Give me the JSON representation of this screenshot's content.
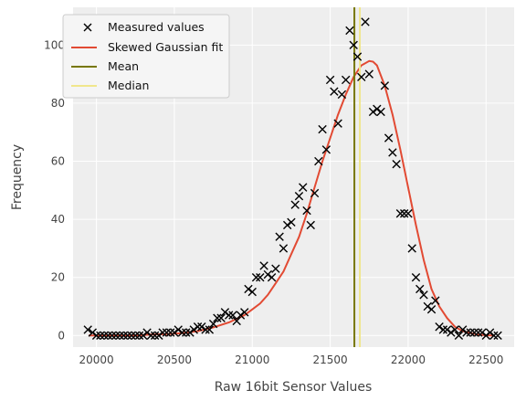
{
  "chart_data": {
    "type": "scatter",
    "xlabel": "Raw 16bit Sensor Values",
    "ylabel": "Frequency",
    "xlim": [
      19850,
      22680
    ],
    "ylim": [
      -4,
      113
    ],
    "xticks": [
      20000,
      20500,
      21000,
      21500,
      22000,
      22500
    ],
    "yticks": [
      0,
      20,
      40,
      60,
      80,
      100
    ],
    "grid": true,
    "legend_position": "top-left",
    "legend": {
      "measured": "Measured values",
      "fit": "Skewed Gaussian fit",
      "mean": "Mean",
      "median": "Median"
    },
    "colors": {
      "measured": "#000000",
      "fit": "#e24a33",
      "mean": "#777700",
      "median": "#f0e68c",
      "background": "#eeeeee",
      "grid": "#ffffff"
    },
    "mean_value": 21655,
    "median_value": 21690,
    "measured": {
      "x": [
        19945,
        19975,
        20000,
        20025,
        20050,
        20075,
        20100,
        20125,
        20150,
        20175,
        20200,
        20225,
        20250,
        20275,
        20300,
        20325,
        20350,
        20375,
        20400,
        20425,
        20450,
        20475,
        20500,
        20525,
        20550,
        20575,
        20600,
        20625,
        20650,
        20675,
        20700,
        20725,
        20750,
        20775,
        20800,
        20825,
        20850,
        20875,
        20900,
        20925,
        20950,
        20975,
        21000,
        21025,
        21050,
        21075,
        21100,
        21125,
        21150,
        21175,
        21200,
        21225,
        21250,
        21275,
        21300,
        21325,
        21350,
        21375,
        21400,
        21425,
        21450,
        21475,
        21500,
        21525,
        21550,
        21575,
        21600,
        21625,
        21650,
        21675,
        21700,
        21725,
        21750,
        21775,
        21800,
        21825,
        21850,
        21875,
        21900,
        21925,
        21950,
        21975,
        22000,
        22025,
        22050,
        22075,
        22100,
        22125,
        22150,
        22175,
        22200,
        22225,
        22250,
        22275,
        22300,
        22325,
        22350,
        22375,
        22400,
        22425,
        22450,
        22475,
        22500,
        22525,
        22550,
        22575
      ],
      "y": [
        2,
        1,
        0,
        0,
        0,
        0,
        0,
        0,
        0,
        0,
        0,
        0,
        0,
        0,
        0,
        1,
        0,
        0,
        0,
        1,
        1,
        1,
        1,
        2,
        1,
        1,
        1,
        2,
        3,
        3,
        2,
        2,
        4,
        6,
        6,
        8,
        7,
        7,
        5,
        7,
        8,
        16,
        15,
        20,
        20,
        24,
        21,
        20,
        23,
        34,
        30,
        38,
        39,
        45,
        48,
        51,
        43,
        38,
        49,
        60,
        71,
        64,
        88,
        84,
        73,
        83,
        88,
        105,
        100,
        96,
        89,
        108,
        90,
        77,
        78,
        77,
        86,
        68,
        63,
        59,
        42,
        42,
        42,
        30,
        20,
        16,
        14,
        10,
        9,
        12,
        3,
        2,
        2,
        1,
        2,
        0,
        2,
        1,
        1,
        1,
        1,
        1,
        0,
        1,
        0,
        0
      ]
    },
    "fit": {
      "x": [
        19950,
        20050,
        20150,
        20250,
        20350,
        20450,
        20550,
        20650,
        20750,
        20850,
        20950,
        21000,
        21050,
        21100,
        21150,
        21200,
        21250,
        21300,
        21350,
        21400,
        21450,
        21500,
        21550,
        21600,
        21650,
        21700,
        21750,
        21775,
        21800,
        21850,
        21900,
        21950,
        22000,
        22050,
        22100,
        22150,
        22200,
        22250,
        22300,
        22350,
        22400,
        22450,
        22500,
        22550
      ],
      "y": [
        0,
        0,
        0,
        0,
        0.3,
        0.5,
        0.8,
        1.5,
        2.8,
        4.5,
        7,
        9,
        11,
        14,
        18,
        22,
        28,
        34,
        42,
        51,
        60,
        68,
        76,
        83,
        89,
        93,
        94.5,
        94.3,
        93,
        86,
        76,
        64,
        51,
        38,
        26,
        16,
        10,
        6,
        3,
        1.5,
        0.8,
        0.3,
        0.1,
        0
      ]
    }
  }
}
